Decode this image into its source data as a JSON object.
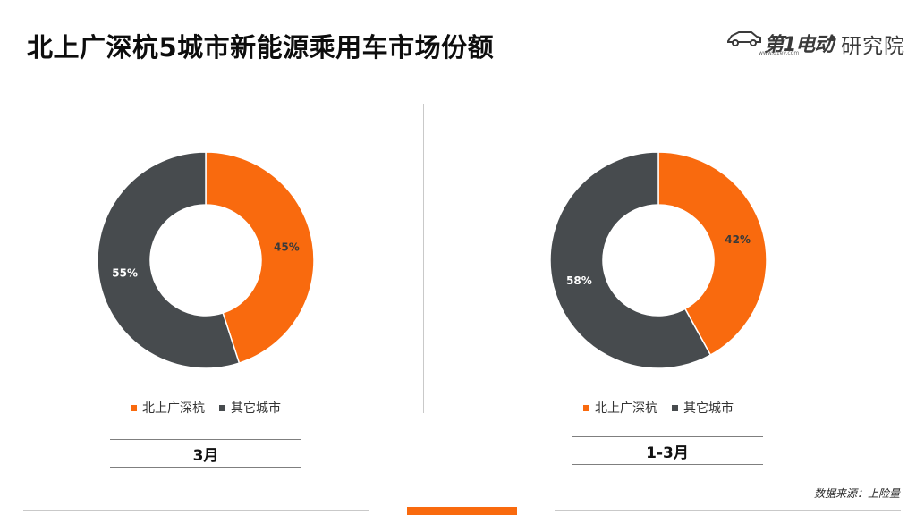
{
  "header": {
    "title": "北上广深杭5城市新能源乘用车市场份额",
    "logo_brand": "第1电动",
    "logo_separator": "•",
    "logo_institute": "研究院",
    "logo_url": "www.d1ev.com"
  },
  "colors": {
    "accent": "#f96a0e",
    "dark": "#474b4e"
  },
  "chart_data": [
    {
      "type": "pie",
      "donut": true,
      "categories": [
        "北上广深杭",
        "其它城市"
      ],
      "values": [
        45,
        55
      ],
      "data_labels": [
        "45%",
        "55%"
      ],
      "colors": [
        "#f96a0e",
        "#474b4e"
      ],
      "legend_placement": "bottom",
      "caption": "3月"
    },
    {
      "type": "pie",
      "donut": true,
      "categories": [
        "北上广深杭",
        "其它城市"
      ],
      "values": [
        42,
        58
      ],
      "data_labels": [
        "42%",
        "58%"
      ],
      "colors": [
        "#f96a0e",
        "#474b4e"
      ],
      "legend_placement": "bottom",
      "caption": "1-3月"
    }
  ],
  "footer": {
    "source": "数据来源：上险量"
  }
}
